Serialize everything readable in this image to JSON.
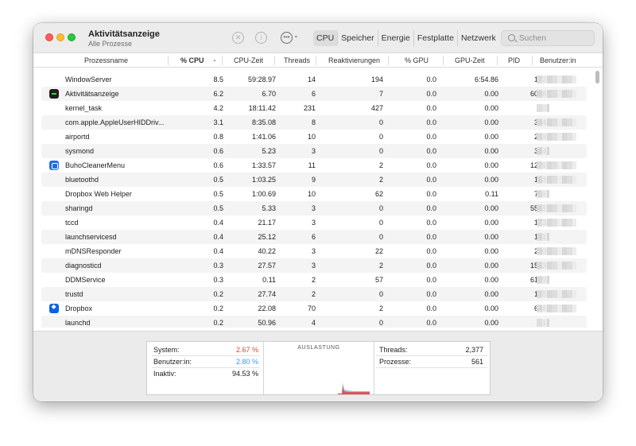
{
  "window": {
    "title": "Aktivitätsanzeige",
    "subtitle": "Alle Prozesse"
  },
  "toolbar": {
    "stop_icon": "stop-process-icon",
    "info_icon": "info-icon",
    "more_icon": "ellipsis-icon",
    "tabs": [
      "CPU",
      "Speicher",
      "Energie",
      "Festplatte",
      "Netzwerk"
    ],
    "active_tab": "CPU"
  },
  "search": {
    "placeholder": "Suchen",
    "value": ""
  },
  "columns": {
    "name": "Prozessname",
    "cpu": "% CPU",
    "cpu_time": "CPU-Zeit",
    "threads": "Threads",
    "wakeups": "Reaktivierungen",
    "gpu": "% GPU",
    "gpu_time": "GPU-Zeit",
    "pid": "PID",
    "user": "Benutzer:in"
  },
  "processes": [
    {
      "name": "WindowServer",
      "cpu": "8.5",
      "cpu_time": "59:28.97",
      "threads": "14",
      "wakeups": "194",
      "gpu": "0.0",
      "gpu_time": "6:54.86",
      "pid": "172",
      "icon": ""
    },
    {
      "name": "Aktivitätsanzeige",
      "cpu": "6.2",
      "cpu_time": "6.70",
      "threads": "6",
      "wakeups": "7",
      "gpu": "0.0",
      "gpu_time": "0.00",
      "pid": "6088",
      "icon": "activity"
    },
    {
      "name": "kernel_task",
      "cpu": "4.2",
      "cpu_time": "18:11.42",
      "threads": "231",
      "wakeups": "427",
      "gpu": "0.0",
      "gpu_time": "0.00",
      "pid": "0",
      "icon": ""
    },
    {
      "name": "com.apple.AppleUserHIDDriv...",
      "cpu": "3.1",
      "cpu_time": "8:35.08",
      "threads": "8",
      "wakeups": "0",
      "gpu": "0.0",
      "gpu_time": "0.00",
      "pid": "344",
      "icon": ""
    },
    {
      "name": "airportd",
      "cpu": "0.8",
      "cpu_time": "1:41.06",
      "threads": "10",
      "wakeups": "0",
      "gpu": "0.0",
      "gpu_time": "0.00",
      "pid": "249",
      "icon": ""
    },
    {
      "name": "sysmond",
      "cpu": "0.6",
      "cpu_time": "5.23",
      "threads": "3",
      "wakeups": "0",
      "gpu": "0.0",
      "gpu_time": "0.00",
      "pid": "384",
      "icon": ""
    },
    {
      "name": "BuhoCleanerMenu",
      "cpu": "0.6",
      "cpu_time": "1:33.57",
      "threads": "11",
      "wakeups": "2",
      "gpu": "0.0",
      "gpu_time": "0.00",
      "pid": "1275",
      "icon": "buho"
    },
    {
      "name": "bluetoothd",
      "cpu": "0.5",
      "cpu_time": "1:03.25",
      "threads": "9",
      "wakeups": "2",
      "gpu": "0.0",
      "gpu_time": "0.00",
      "pid": "163",
      "icon": ""
    },
    {
      "name": "Dropbox Web Helper",
      "cpu": "0.5",
      "cpu_time": "1:00.69",
      "threads": "10",
      "wakeups": "62",
      "gpu": "0.0",
      "gpu_time": "0.11",
      "pid": "766",
      "icon": ""
    },
    {
      "name": "sharingd",
      "cpu": "0.5",
      "cpu_time": "5.33",
      "threads": "3",
      "wakeups": "0",
      "gpu": "0.0",
      "gpu_time": "0.00",
      "pid": "5561",
      "icon": ""
    },
    {
      "name": "tccd",
      "cpu": "0.4",
      "cpu_time": "21.17",
      "threads": "3",
      "wakeups": "0",
      "gpu": "0.0",
      "gpu_time": "0.00",
      "pid": "173",
      "icon": ""
    },
    {
      "name": "launchservicesd",
      "cpu": "0.4",
      "cpu_time": "25.12",
      "threads": "6",
      "wakeups": "0",
      "gpu": "0.0",
      "gpu_time": "0.00",
      "pid": "141",
      "icon": ""
    },
    {
      "name": "mDNSResponder",
      "cpu": "0.4",
      "cpu_time": "40.22",
      "threads": "3",
      "wakeups": "22",
      "gpu": "0.0",
      "gpu_time": "0.00",
      "pid": "230",
      "icon": ""
    },
    {
      "name": "diagnosticd",
      "cpu": "0.3",
      "cpu_time": "27.57",
      "threads": "3",
      "wakeups": "2",
      "gpu": "0.0",
      "gpu_time": "0.00",
      "pid": "1563",
      "icon": ""
    },
    {
      "name": "DDMService",
      "cpu": "0.3",
      "cpu_time": "0.11",
      "threads": "2",
      "wakeups": "57",
      "gpu": "0.0",
      "gpu_time": "0.00",
      "pid": "6109",
      "icon": ""
    },
    {
      "name": "trustd",
      "cpu": "0.2",
      "cpu_time": "27.74",
      "threads": "2",
      "wakeups": "0",
      "gpu": "0.0",
      "gpu_time": "0.00",
      "pid": "178",
      "icon": ""
    },
    {
      "name": "Dropbox",
      "cpu": "0.2",
      "cpu_time": "22.08",
      "threads": "70",
      "wakeups": "2",
      "gpu": "0.0",
      "gpu_time": "0.00",
      "pid": "648",
      "icon": "dropbox"
    },
    {
      "name": "launchd",
      "cpu": "0.2",
      "cpu_time": "50.96",
      "threads": "4",
      "wakeups": "0",
      "gpu": "0.0",
      "gpu_time": "0.00",
      "pid": "1",
      "icon": ""
    }
  ],
  "summary": {
    "system_label": "System:",
    "system_value": "2.67 %",
    "user_label": "Benutzer:in:",
    "user_value": "2.80 %",
    "idle_label": "Inaktiv:",
    "idle_value": "94.53 %",
    "graph_title": "AUSLASTUNG",
    "threads_label": "Threads:",
    "threads_value": "2,377",
    "processes_label": "Prozesse:",
    "processes_value": "561"
  },
  "colors": {
    "system": "#e8413b",
    "user": "#2f9ee8"
  }
}
